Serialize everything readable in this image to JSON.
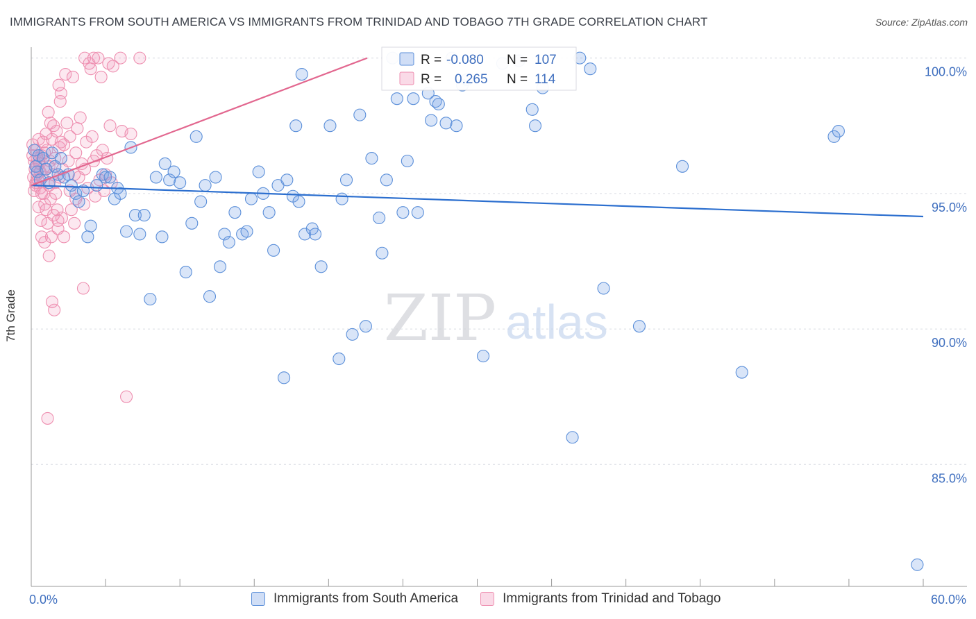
{
  "header": {
    "title": "IMMIGRANTS FROM SOUTH AMERICA VS IMMIGRANTS FROM TRINIDAD AND TOBAGO 7TH GRADE CORRELATION CHART",
    "source": "Source: ZipAtlas.com"
  },
  "watermark": {
    "zip": "ZIP",
    "atlas": "atlas"
  },
  "colors": {
    "blue": "#5b8fd9",
    "blue_line": "#2c6fcf",
    "blue_fill": "rgba(120,160,230,0.28)",
    "pink": "#ee8fb0",
    "pink_line": "#e2678f",
    "pink_fill": "rgba(240,150,185,0.22)",
    "tick_label": "#3f6fbf",
    "grid": "#d9dce3"
  },
  "chart_data": {
    "type": "scatter",
    "title": "IMMIGRANTS FROM SOUTH AMERICA VS IMMIGRANTS FROM TRINIDAD AND TOBAGO 7TH GRADE CORRELATION CHART",
    "xlabel": "",
    "ylabel": "7th Grade",
    "xlim": [
      0,
      60
    ],
    "ylim": [
      80.5,
      100.4
    ],
    "x_tick_labels": [
      "0.0%",
      "60.0%"
    ],
    "y_ticks": [
      85,
      90,
      95,
      100
    ],
    "y_tick_labels": [
      "85.0%",
      "90.0%",
      "95.0%",
      "100.0%"
    ],
    "legend_stats": [
      {
        "r_label": "R =",
        "r_value": "-0.080",
        "n_label": "N =",
        "n_value": "107"
      },
      {
        "r_label": "R =",
        "r_value": "0.265",
        "n_label": "N =",
        "n_value": "114"
      }
    ],
    "series": [
      {
        "name": "Immigrants from South America",
        "color": "#5b8fd9",
        "trend": {
          "x": [
            0,
            60
          ],
          "y": [
            95.3,
            94.15
          ]
        },
        "points": [
          [
            0.2,
            96.6
          ],
          [
            0.3,
            96.0
          ],
          [
            0.4,
            95.8
          ],
          [
            0.5,
            96.4
          ],
          [
            0.6,
            95.5
          ],
          [
            0.8,
            96.3
          ],
          [
            1.0,
            95.9
          ],
          [
            1.2,
            95.4
          ],
          [
            1.4,
            96.5
          ],
          [
            1.6,
            96.0
          ],
          [
            1.8,
            95.7
          ],
          [
            2.0,
            96.3
          ],
          [
            2.2,
            95.6
          ],
          [
            2.5,
            95.7
          ],
          [
            2.7,
            95.3
          ],
          [
            3.0,
            95.0
          ],
          [
            3.2,
            94.7
          ],
          [
            3.5,
            95.1
          ],
          [
            3.8,
            93.4
          ],
          [
            4.0,
            93.8
          ],
          [
            4.4,
            95.3
          ],
          [
            4.8,
            95.7
          ],
          [
            5.0,
            95.6
          ],
          [
            5.3,
            95.6
          ],
          [
            5.6,
            94.8
          ],
          [
            5.8,
            95.2
          ],
          [
            6.0,
            95.0
          ],
          [
            6.4,
            93.6
          ],
          [
            6.7,
            96.7
          ],
          [
            7.0,
            94.2
          ],
          [
            7.3,
            93.5
          ],
          [
            7.6,
            94.2
          ],
          [
            8.0,
            91.1
          ],
          [
            8.4,
            95.6
          ],
          [
            8.8,
            93.4
          ],
          [
            9.0,
            96.1
          ],
          [
            9.3,
            95.5
          ],
          [
            9.6,
            95.8
          ],
          [
            10.0,
            95.4
          ],
          [
            10.4,
            92.1
          ],
          [
            10.8,
            93.9
          ],
          [
            11.1,
            97.1
          ],
          [
            11.4,
            94.7
          ],
          [
            11.7,
            95.3
          ],
          [
            12.0,
            91.2
          ],
          [
            12.4,
            95.6
          ],
          [
            12.7,
            92.3
          ],
          [
            13.0,
            93.5
          ],
          [
            13.3,
            93.2
          ],
          [
            13.7,
            94.3
          ],
          [
            14.2,
            93.5
          ],
          [
            14.5,
            93.6
          ],
          [
            14.8,
            94.8
          ],
          [
            15.3,
            95.8
          ],
          [
            15.6,
            95.0
          ],
          [
            16.0,
            94.3
          ],
          [
            16.3,
            92.9
          ],
          [
            16.6,
            95.3
          ],
          [
            17.0,
            88.2
          ],
          [
            17.2,
            95.5
          ],
          [
            17.6,
            94.9
          ],
          [
            17.8,
            97.5
          ],
          [
            18.0,
            94.7
          ],
          [
            18.2,
            99.4
          ],
          [
            18.4,
            93.5
          ],
          [
            18.9,
            93.7
          ],
          [
            19.1,
            93.5
          ],
          [
            19.5,
            92.3
          ],
          [
            20.1,
            97.5
          ],
          [
            20.7,
            88.9
          ],
          [
            20.9,
            94.8
          ],
          [
            21.2,
            95.5
          ],
          [
            21.6,
            89.8
          ],
          [
            22.1,
            97.9
          ],
          [
            22.5,
            90.1
          ],
          [
            22.9,
            96.3
          ],
          [
            23.4,
            94.1
          ],
          [
            23.6,
            92.8
          ],
          [
            23.9,
            95.5
          ],
          [
            24.3,
            100.0
          ],
          [
            24.6,
            98.5
          ],
          [
            25.0,
            94.3
          ],
          [
            25.3,
            96.2
          ],
          [
            25.7,
            98.5
          ],
          [
            26.0,
            94.3
          ],
          [
            26.7,
            98.7
          ],
          [
            26.9,
            97.7
          ],
          [
            27.2,
            98.4
          ],
          [
            27.4,
            98.3
          ],
          [
            27.9,
            97.6
          ],
          [
            28.3,
            100.0
          ],
          [
            28.6,
            97.5
          ],
          [
            29.0,
            99.0
          ],
          [
            29.3,
            99.2
          ],
          [
            30.4,
            89.0
          ],
          [
            31.7,
            99.8
          ],
          [
            32.8,
            99.9
          ],
          [
            33.7,
            98.1
          ],
          [
            33.9,
            97.5
          ],
          [
            34.4,
            98.9
          ],
          [
            36.4,
            86.0
          ],
          [
            36.9,
            100.0
          ],
          [
            37.6,
            99.6
          ],
          [
            38.5,
            91.5
          ],
          [
            40.9,
            90.1
          ],
          [
            43.8,
            96.0
          ],
          [
            47.8,
            88.4
          ],
          [
            54.0,
            97.1
          ],
          [
            54.3,
            97.3
          ],
          [
            59.6,
            81.3
          ]
        ]
      },
      {
        "name": "Immigrants from Trinidad and Tobago",
        "color": "#ee8fb0",
        "trend": {
          "x": [
            0,
            22.6
          ],
          "y": [
            95.3,
            100.0
          ]
        },
        "points": [
          [
            0.1,
            96.8
          ],
          [
            0.1,
            96.4
          ],
          [
            0.15,
            95.6
          ],
          [
            0.2,
            96.2
          ],
          [
            0.2,
            95.1
          ],
          [
            0.25,
            95.9
          ],
          [
            0.3,
            96.6
          ],
          [
            0.3,
            95.4
          ],
          [
            0.35,
            96.0
          ],
          [
            0.4,
            95.7
          ],
          [
            0.4,
            96.3
          ],
          [
            0.45,
            95.5
          ],
          [
            0.5,
            97.0
          ],
          [
            0.5,
            94.5
          ],
          [
            0.55,
            96.1
          ],
          [
            0.6,
            95.8
          ],
          [
            0.6,
            95.2
          ],
          [
            0.65,
            94.0
          ],
          [
            0.7,
            96.4
          ],
          [
            0.7,
            93.4
          ],
          [
            0.75,
            95.6
          ],
          [
            0.8,
            96.9
          ],
          [
            0.85,
            95.0
          ],
          [
            0.9,
            94.6
          ],
          [
            0.9,
            93.2
          ],
          [
            0.95,
            95.9
          ],
          [
            1.0,
            97.2
          ],
          [
            1.0,
            94.4
          ],
          [
            1.05,
            96.6
          ],
          [
            1.1,
            93.9
          ],
          [
            1.1,
            86.7
          ],
          [
            1.15,
            98.0
          ],
          [
            1.2,
            95.3
          ],
          [
            1.2,
            92.7
          ],
          [
            1.25,
            96.2
          ],
          [
            1.3,
            97.6
          ],
          [
            1.3,
            94.8
          ],
          [
            1.35,
            93.4
          ],
          [
            1.4,
            97.0
          ],
          [
            1.4,
            91.0
          ],
          [
            1.45,
            95.7
          ],
          [
            1.5,
            97.5
          ],
          [
            1.5,
            94.2
          ],
          [
            1.55,
            90.7
          ],
          [
            1.6,
            96.3
          ],
          [
            1.65,
            95.0
          ],
          [
            1.7,
            97.3
          ],
          [
            1.75,
            94.4
          ],
          [
            1.8,
            93.7
          ],
          [
            1.85,
            99.0
          ],
          [
            1.9,
            96.7
          ],
          [
            1.9,
            95.6
          ],
          [
            1.95,
            98.4
          ],
          [
            2.0,
            98.7
          ],
          [
            2.0,
            96.9
          ],
          [
            2.05,
            94.1
          ],
          [
            2.1,
            95.9
          ],
          [
            2.2,
            93.4
          ],
          [
            2.3,
            99.4
          ],
          [
            2.4,
            97.6
          ],
          [
            2.5,
            96.2
          ],
          [
            2.6,
            95.1
          ],
          [
            2.7,
            94.4
          ],
          [
            2.8,
            99.3
          ],
          [
            2.9,
            93.9
          ],
          [
            3.0,
            96.5
          ],
          [
            3.1,
            97.4
          ],
          [
            3.2,
            95.6
          ],
          [
            3.3,
            97.8
          ],
          [
            3.4,
            96.1
          ],
          [
            3.5,
            91.5
          ],
          [
            3.55,
            94.6
          ],
          [
            3.6,
            100.0
          ],
          [
            3.7,
            96.9
          ],
          [
            3.8,
            95.2
          ],
          [
            3.9,
            99.8
          ],
          [
            4.0,
            99.6
          ],
          [
            4.1,
            97.1
          ],
          [
            4.2,
            100.0
          ],
          [
            4.3,
            94.9
          ],
          [
            4.4,
            96.4
          ],
          [
            4.5,
            100.0
          ],
          [
            4.6,
            95.5
          ],
          [
            4.7,
            99.3
          ],
          [
            4.8,
            96.6
          ],
          [
            4.9,
            95.1
          ],
          [
            5.0,
            95.7
          ],
          [
            5.1,
            96.3
          ],
          [
            5.2,
            99.8
          ],
          [
            5.3,
            97.5
          ],
          [
            5.4,
            95.4
          ],
          [
            5.5,
            99.7
          ],
          [
            6.0,
            100.0
          ],
          [
            6.1,
            97.3
          ],
          [
            6.4,
            87.5
          ],
          [
            6.7,
            97.2
          ],
          [
            7.3,
            100.0
          ],
          [
            0.3,
            95.3
          ],
          [
            0.5,
            96.2
          ],
          [
            0.7,
            95.0
          ],
          [
            0.9,
            96.5
          ],
          [
            1.2,
            96.0
          ],
          [
            1.6,
            95.4
          ],
          [
            2.2,
            96.8
          ],
          [
            2.6,
            97.1
          ],
          [
            3.0,
            94.8
          ],
          [
            3.6,
            95.9
          ],
          [
            4.2,
            96.2
          ],
          [
            2.9,
            95.7
          ],
          [
            1.8,
            94.0
          ]
        ]
      }
    ]
  },
  "legend": {
    "bottom_items": [
      "Immigrants from South America",
      "Immigrants from Trinidad and Tobago"
    ]
  }
}
